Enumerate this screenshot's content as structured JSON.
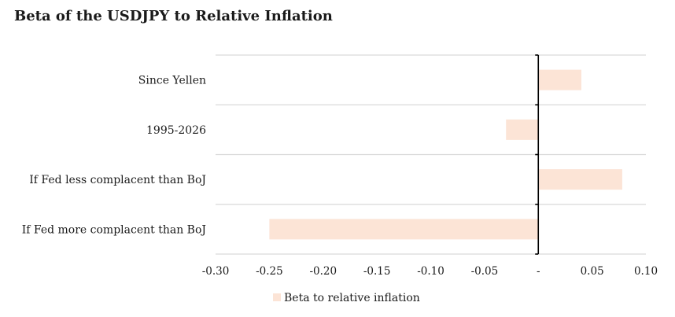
{
  "chart_data": {
    "type": "bar",
    "orientation": "horizontal",
    "title": "Beta of the USDJPY to Relative Inflation",
    "categories": [
      "Since Yellen",
      "1995-2026",
      "If Fed less complacent than BoJ",
      "If Fed more complacent than BoJ"
    ],
    "series": [
      {
        "name": "Beta to relative inflation",
        "values": [
          0.04,
          -0.03,
          0.078,
          -0.25
        ],
        "color": "#fce4d6"
      }
    ],
    "xlim": [
      -0.3,
      0.1
    ],
    "xticks": [
      -0.3,
      -0.25,
      -0.2,
      -0.15,
      -0.1,
      -0.05,
      0,
      0.05,
      0.1
    ],
    "xtick_labels": [
      "-0.30",
      "-0.25",
      "-0.20",
      "-0.15",
      "-0.10",
      "-0.05",
      "-",
      "0.05",
      "0.10"
    ],
    "grid": true,
    "legend": "bottom"
  }
}
